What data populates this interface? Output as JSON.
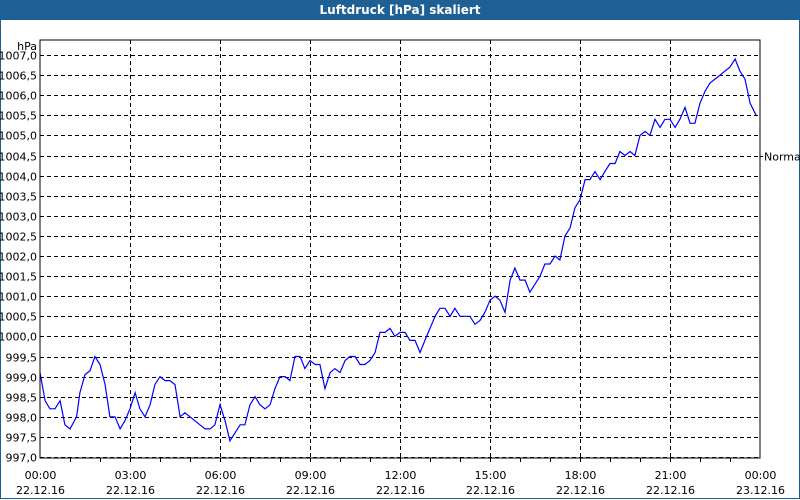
{
  "window": {
    "title": "Luftdruck [hPa] skaliert"
  },
  "chart_data": {
    "type": "line",
    "title": "Luftdruck [hPa] skaliert",
    "ylabel": "hPa",
    "xlabel": "",
    "ylim": [
      997.0,
      1007.0
    ],
    "xlim_hours": [
      0,
      24
    ],
    "grid": true,
    "yticks": [
      "997,0",
      "997,5",
      "998,0",
      "998,5",
      "999,0",
      "999,5",
      "1000,0",
      "1000,5",
      "1001,0",
      "1001,5",
      "1002,0",
      "1002,5",
      "1003,0",
      "1003,5",
      "1004,0",
      "1004,5",
      "1005,0",
      "1005,5",
      "1006,0",
      "1006,5",
      "1007,0"
    ],
    "xticks": [
      {
        "time": "00:00",
        "date": "22.12.16"
      },
      {
        "time": "03:00",
        "date": "22.12.16"
      },
      {
        "time": "06:00",
        "date": "22.12.16"
      },
      {
        "time": "09:00",
        "date": "22.12.16"
      },
      {
        "time": "12:00",
        "date": "22.12.16"
      },
      {
        "time": "15:00",
        "date": "22.12.16"
      },
      {
        "time": "18:00",
        "date": "22.12.16"
      },
      {
        "time": "21:00",
        "date": "22.12.16"
      },
      {
        "time": "00:00",
        "date": "23.12.16"
      }
    ],
    "reference": {
      "label": "Normal",
      "value": 1004.5
    },
    "series": [
      {
        "name": "Luftdruck",
        "color": "#0000ff",
        "x": [
          0,
          0.17,
          0.33,
          0.5,
          0.67,
          0.83,
          1.0,
          1.22,
          1.33,
          1.5,
          1.67,
          1.83,
          2.0,
          2.17,
          2.33,
          2.5,
          2.67,
          2.83,
          3.0,
          3.17,
          3.33,
          3.5,
          3.67,
          3.83,
          4.0,
          4.17,
          4.33,
          4.5,
          4.67,
          4.83,
          5.0,
          5.33,
          5.5,
          5.67,
          5.83,
          6.0,
          6.17,
          6.33,
          6.5,
          6.67,
          6.83,
          7.0,
          7.17,
          7.33,
          7.5,
          7.67,
          7.83,
          8.0,
          8.17,
          8.33,
          8.5,
          8.67,
          8.83,
          9.0,
          9.17,
          9.33,
          9.5,
          9.67,
          9.83,
          10.0,
          10.17,
          10.33,
          10.5,
          10.67,
          10.83,
          11.0,
          11.17,
          11.33,
          11.5,
          11.67,
          11.83,
          12.0,
          12.17,
          12.33,
          12.5,
          12.67,
          12.83,
          13.0,
          13.17,
          13.33,
          13.5,
          13.67,
          13.83,
          14.0,
          14.33,
          14.5,
          14.67,
          14.83,
          15.0,
          15.17,
          15.33,
          15.5,
          15.67,
          15.83,
          16.0,
          16.17,
          16.33,
          16.5,
          16.67,
          16.83,
          17.0,
          17.17,
          17.33,
          17.5,
          17.67,
          17.83,
          18.0,
          18.17,
          18.33,
          18.5,
          18.67,
          18.83,
          19.0,
          19.17,
          19.33,
          19.5,
          19.67,
          19.83,
          20.0,
          20.17,
          20.33,
          20.5,
          20.67,
          20.83,
          21.0,
          21.17,
          21.33,
          21.5,
          21.67,
          21.83,
          22.0,
          22.17,
          22.33,
          22.5,
          22.67,
          22.83,
          23.0,
          23.17,
          23.33,
          23.5,
          23.67,
          23.87
        ],
        "y": [
          999.1,
          998.4,
          998.2,
          998.2,
          998.4,
          997.8,
          997.7,
          998.0,
          998.6,
          999.05,
          999.15,
          999.5,
          999.3,
          998.8,
          998.0,
          998.0,
          997.7,
          997.9,
          998.2,
          998.6,
          998.2,
          998.0,
          998.3,
          998.8,
          999.0,
          998.9,
          998.9,
          998.8,
          998.0,
          998.1,
          998.0,
          997.8,
          997.7,
          997.7,
          997.8,
          998.3,
          997.9,
          997.4,
          997.6,
          997.8,
          997.8,
          998.3,
          998.5,
          998.3,
          998.2,
          998.3,
          998.7,
          999.0,
          999.0,
          998.9,
          999.5,
          999.5,
          999.2,
          999.4,
          999.3,
          999.3,
          998.7,
          999.1,
          999.2,
          999.1,
          999.4,
          999.5,
          999.5,
          999.3,
          999.3,
          999.4,
          999.6,
          1000.1,
          1000.1,
          1000.2,
          1000.0,
          1000.1,
          1000.1,
          999.9,
          999.9,
          999.6,
          999.9,
          1000.2,
          1000.5,
          1000.7,
          1000.7,
          1000.5,
          1000.7,
          1000.5,
          1000.5,
          1000.3,
          1000.4,
          1000.6,
          1000.9,
          1001.0,
          1000.9,
          1000.6,
          1001.4,
          1001.7,
          1001.4,
          1001.4,
          1001.1,
          1001.3,
          1001.5,
          1001.8,
          1001.8,
          1002.0,
          1001.9,
          1002.5,
          1002.7,
          1003.2,
          1003.4,
          1003.9,
          1003.9,
          1004.1,
          1003.9,
          1004.1,
          1004.3,
          1004.3,
          1004.6,
          1004.5,
          1004.6,
          1004.5,
          1005.0,
          1005.1,
          1005.0,
          1005.4,
          1005.2,
          1005.4,
          1005.4,
          1005.2,
          1005.4,
          1005.7,
          1005.3,
          1005.3,
          1005.8,
          1006.1,
          1006.3,
          1006.4,
          1006.5,
          1006.6,
          1006.7,
          1006.9,
          1006.6,
          1006.4,
          1005.8,
          1005.5
        ]
      }
    ]
  }
}
